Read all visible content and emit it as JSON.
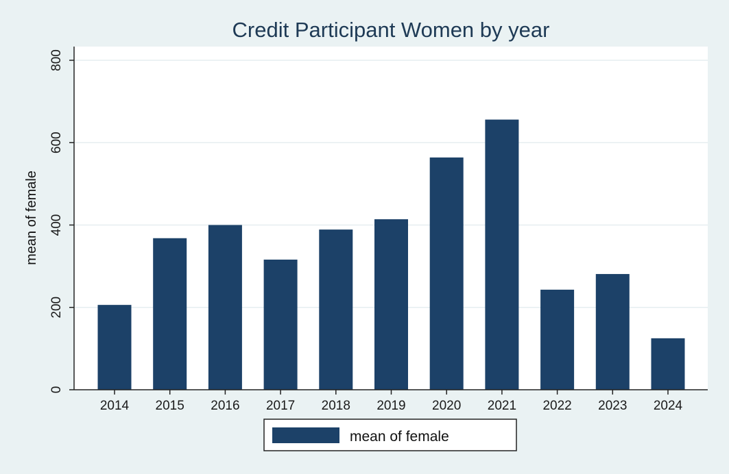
{
  "chart_data": {
    "type": "bar",
    "title": "Credit Participant Women by year",
    "xlabel": "",
    "ylabel": "mean of female",
    "categories": [
      "2014",
      "2015",
      "2016",
      "2017",
      "2018",
      "2019",
      "2020",
      "2021",
      "2022",
      "2023",
      "2024"
    ],
    "series": [
      {
        "name": "mean of female",
        "values": [
          206,
          368,
          400,
          316,
          389,
          414,
          564,
          656,
          243,
          281,
          125
        ],
        "color": "#1c4168"
      }
    ],
    "yticks": [
      "0",
      "200",
      "400",
      "600",
      "800"
    ],
    "ylim": [
      0,
      800
    ],
    "grid": true,
    "legend_position": "bottom",
    "background_color": "#eaf2f3",
    "plot_background_color": "#ffffff",
    "gridline_color": "#e6eef0"
  }
}
